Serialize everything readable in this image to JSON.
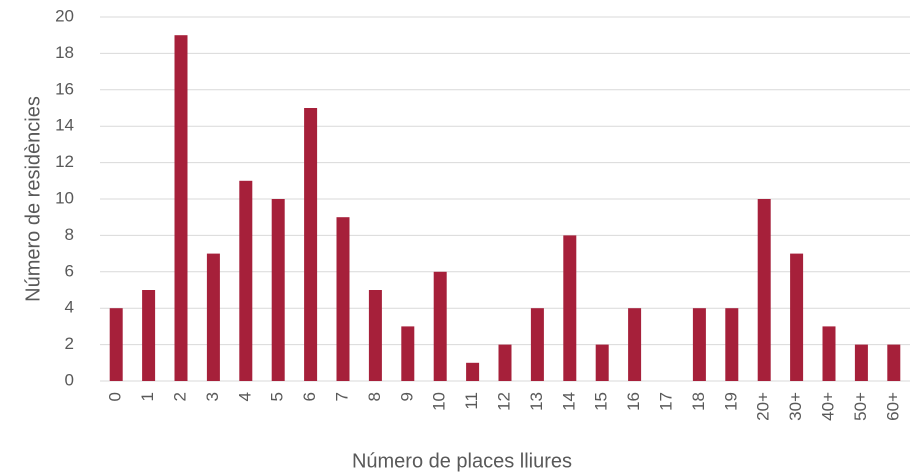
{
  "chart_data": {
    "type": "bar",
    "x_label": "Número de places lliures",
    "y_label": "Número de residències",
    "categories": [
      "0",
      "1",
      "2",
      "3",
      "4",
      "5",
      "6",
      "7",
      "8",
      "9",
      "10",
      "11",
      "12",
      "13",
      "14",
      "15",
      "16",
      "17",
      "18",
      "19",
      "20+",
      "30+",
      "40+",
      "50+",
      "60+"
    ],
    "values": [
      4,
      5,
      19,
      7,
      11,
      10,
      15,
      9,
      5,
      3,
      6,
      1,
      2,
      4,
      8,
      2,
      4,
      0,
      4,
      4,
      10,
      7,
      3,
      2,
      2
    ],
    "color": "#a6203a",
    "ylim": [
      0,
      20
    ],
    "yticks": [
      0,
      2,
      4,
      6,
      8,
      10,
      12,
      14,
      16,
      18,
      20
    ],
    "grid": true
  }
}
